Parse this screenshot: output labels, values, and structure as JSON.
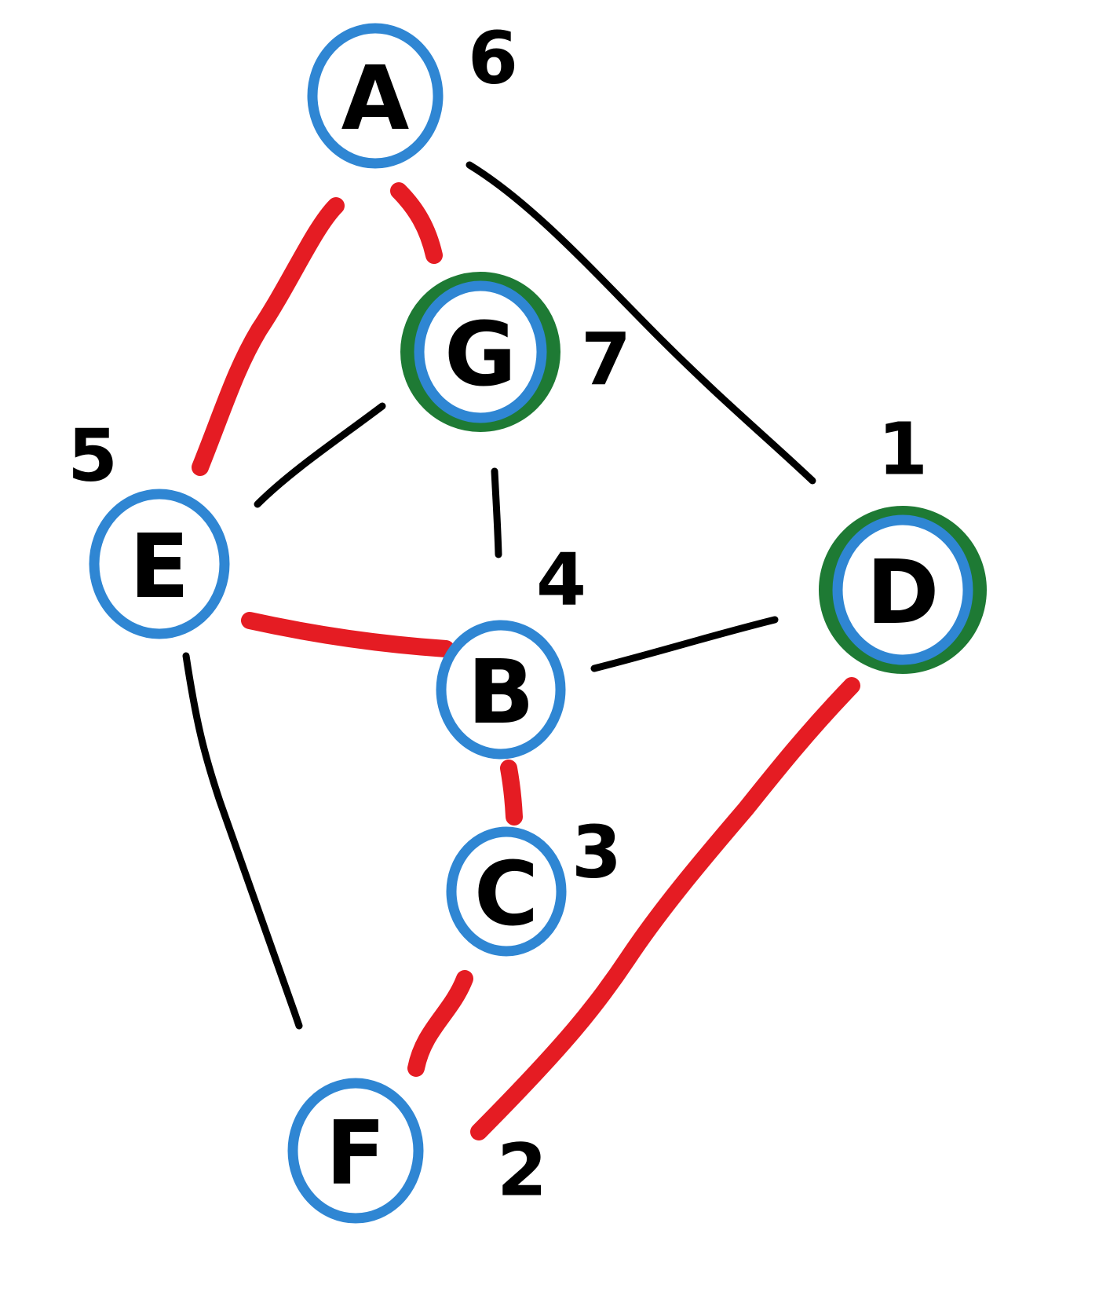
{
  "colors": {
    "ink": "#000000",
    "highlight_edge": "#e51c23",
    "node_ring": "#2f86d3",
    "selected_ring": "#1e7a34",
    "background": "#ffffff"
  },
  "nodes": [
    {
      "id": "A",
      "label": "A",
      "number": "6",
      "selected": false
    },
    {
      "id": "G",
      "label": "G",
      "number": "7",
      "selected": true
    },
    {
      "id": "E",
      "label": "E",
      "number": "5",
      "selected": false
    },
    {
      "id": "D",
      "label": "D",
      "number": "1",
      "selected": true
    },
    {
      "id": "B",
      "label": "B",
      "number": "4",
      "selected": false
    },
    {
      "id": "C",
      "label": "C",
      "number": "3",
      "selected": false
    },
    {
      "id": "F",
      "label": "F",
      "number": "2",
      "selected": false
    }
  ],
  "edges": [
    {
      "from": "A",
      "to": "E",
      "highlighted": true
    },
    {
      "from": "A",
      "to": "G",
      "highlighted": true
    },
    {
      "from": "A",
      "to": "D",
      "highlighted": false
    },
    {
      "from": "G",
      "to": "E",
      "highlighted": false
    },
    {
      "from": "G",
      "to": "B",
      "highlighted": false
    },
    {
      "from": "E",
      "to": "B",
      "highlighted": true
    },
    {
      "from": "E",
      "to": "F",
      "highlighted": false
    },
    {
      "from": "B",
      "to": "D",
      "highlighted": false
    },
    {
      "from": "B",
      "to": "C",
      "highlighted": true
    },
    {
      "from": "C",
      "to": "F",
      "highlighted": true
    },
    {
      "from": "D",
      "to": "F",
      "highlighted": true
    }
  ]
}
